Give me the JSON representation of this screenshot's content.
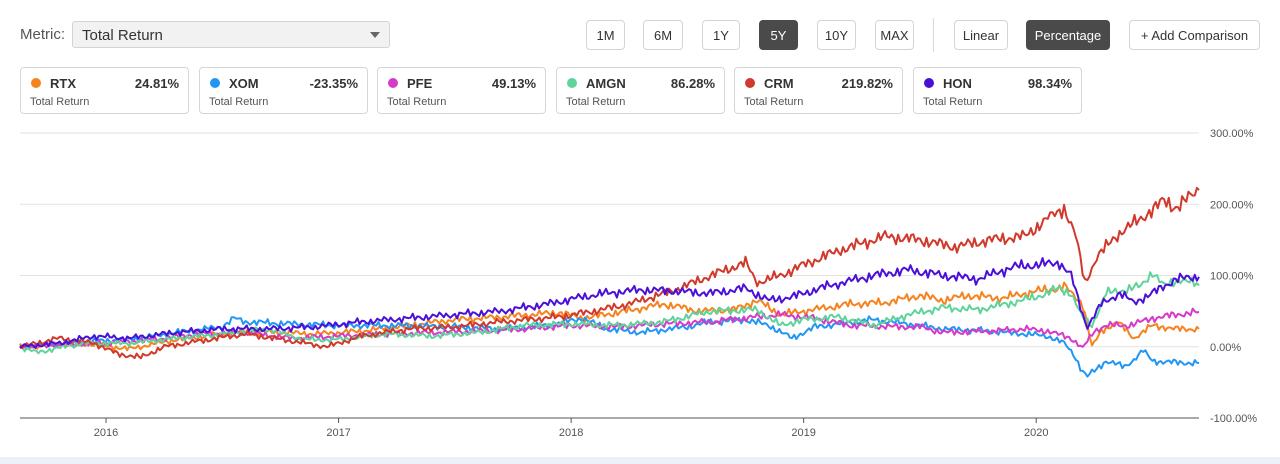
{
  "metric": {
    "label": "Metric:",
    "value": "Total Return"
  },
  "time_buttons": [
    {
      "label": "1M",
      "active": false
    },
    {
      "label": "6M",
      "active": false
    },
    {
      "label": "1Y",
      "active": false
    },
    {
      "label": "5Y",
      "active": true
    },
    {
      "label": "10Y",
      "active": false
    },
    {
      "label": "MAX",
      "active": false
    }
  ],
  "scale_buttons": [
    {
      "label": "Linear",
      "active": false
    },
    {
      "label": "Percentage",
      "active": true
    }
  ],
  "add_comparison": "+ Add Comparison",
  "cards": [
    {
      "ticker": "RTX",
      "value": "24.81%",
      "sub": "Total Return",
      "color": "#f5831f"
    },
    {
      "ticker": "XOM",
      "value": "-23.35%",
      "sub": "Total Return",
      "color": "#2196f3"
    },
    {
      "ticker": "PFE",
      "value": "49.13%",
      "sub": "Total Return",
      "color": "#d63ac8"
    },
    {
      "ticker": "AMGN",
      "value": "86.28%",
      "sub": "Total Return",
      "color": "#5fd39a"
    },
    {
      "ticker": "CRM",
      "value": "219.82%",
      "sub": "Total Return",
      "color": "#d0392b"
    },
    {
      "ticker": "HON",
      "value": "98.34%",
      "sub": "Total Return",
      "color": "#4a10d8"
    }
  ],
  "chart_data": {
    "type": "line",
    "x_start": 2015.63,
    "x_end": 2020.7,
    "y_ticks": [
      "300.00%",
      "200.00%",
      "100.00%",
      "0.00%",
      "-100.00%"
    ],
    "y_tick_values": [
      300,
      200,
      100,
      0,
      -100
    ],
    "ylim": [
      -100,
      300
    ],
    "x_tick_labels": [
      "2016",
      "2017",
      "2018",
      "2019",
      "2020"
    ],
    "x_tick_values": [
      2016,
      2017,
      2018,
      2019,
      2020
    ],
    "grid": true,
    "series": [
      {
        "name": "RTX",
        "color": "#f5831f",
        "points": [
          [
            2015.63,
            0
          ],
          [
            2015.9,
            5
          ],
          [
            2016.1,
            -3
          ],
          [
            2016.3,
            10
          ],
          [
            2016.6,
            22
          ],
          [
            2016.9,
            18
          ],
          [
            2017.1,
            22
          ],
          [
            2017.3,
            30
          ],
          [
            2017.5,
            38
          ],
          [
            2017.7,
            42
          ],
          [
            2017.95,
            48
          ],
          [
            2018.05,
            40
          ],
          [
            2018.2,
            48
          ],
          [
            2018.4,
            60
          ],
          [
            2018.55,
            50
          ],
          [
            2018.7,
            52
          ],
          [
            2018.8,
            65
          ],
          [
            2018.9,
            45
          ],
          [
            2019.0,
            50
          ],
          [
            2019.2,
            60
          ],
          [
            2019.35,
            62
          ],
          [
            2019.5,
            72
          ],
          [
            2019.6,
            65
          ],
          [
            2019.7,
            72
          ],
          [
            2019.85,
            68
          ],
          [
            2020.0,
            78
          ],
          [
            2020.1,
            82
          ],
          [
            2020.12,
            85
          ],
          [
            2020.2,
            60
          ],
          [
            2020.24,
            0
          ],
          [
            2020.28,
            22
          ],
          [
            2020.35,
            35
          ],
          [
            2020.42,
            12
          ],
          [
            2020.5,
            30
          ],
          [
            2020.6,
            25
          ],
          [
            2020.7,
            25
          ]
        ]
      },
      {
        "name": "XOM",
        "color": "#2196f3",
        "points": [
          [
            2015.63,
            0
          ],
          [
            2015.8,
            5
          ],
          [
            2015.95,
            8
          ],
          [
            2016.1,
            10
          ],
          [
            2016.3,
            20
          ],
          [
            2016.5,
            28
          ],
          [
            2016.55,
            40
          ],
          [
            2016.6,
            35
          ],
          [
            2016.8,
            32
          ],
          [
            2017.0,
            30
          ],
          [
            2017.2,
            30
          ],
          [
            2017.5,
            28
          ],
          [
            2017.7,
            25
          ],
          [
            2017.9,
            30
          ],
          [
            2018.05,
            40
          ],
          [
            2018.15,
            25
          ],
          [
            2018.3,
            20
          ],
          [
            2018.5,
            28
          ],
          [
            2018.6,
            35
          ],
          [
            2018.75,
            38
          ],
          [
            2018.85,
            30
          ],
          [
            2018.95,
            12
          ],
          [
            2019.05,
            28
          ],
          [
            2019.3,
            38
          ],
          [
            2019.45,
            32
          ],
          [
            2019.6,
            25
          ],
          [
            2019.8,
            22
          ],
          [
            2019.95,
            18
          ],
          [
            2020.05,
            15
          ],
          [
            2020.12,
            5
          ],
          [
            2020.16,
            -10
          ],
          [
            2020.2,
            -35
          ],
          [
            2020.22,
            -42
          ],
          [
            2020.3,
            -20
          ],
          [
            2020.38,
            -28
          ],
          [
            2020.42,
            -18
          ],
          [
            2020.46,
            -5
          ],
          [
            2020.5,
            -20
          ],
          [
            2020.6,
            -22
          ],
          [
            2020.7,
            -23
          ]
        ]
      },
      {
        "name": "PFE",
        "color": "#d63ac8",
        "points": [
          [
            2015.63,
            0
          ],
          [
            2015.8,
            3
          ],
          [
            2016.0,
            5
          ],
          [
            2016.2,
            10
          ],
          [
            2016.4,
            18
          ],
          [
            2016.6,
            20
          ],
          [
            2016.8,
            12
          ],
          [
            2017.0,
            15
          ],
          [
            2017.2,
            18
          ],
          [
            2017.4,
            20
          ],
          [
            2017.6,
            22
          ],
          [
            2017.8,
            25
          ],
          [
            2018.0,
            30
          ],
          [
            2018.2,
            28
          ],
          [
            2018.4,
            32
          ],
          [
            2018.6,
            35
          ],
          [
            2018.8,
            42
          ],
          [
            2018.9,
            45
          ],
          [
            2019.05,
            40
          ],
          [
            2019.2,
            30
          ],
          [
            2019.4,
            28
          ],
          [
            2019.5,
            28
          ],
          [
            2019.6,
            20
          ],
          [
            2019.8,
            22
          ],
          [
            2019.95,
            25
          ],
          [
            2020.05,
            22
          ],
          [
            2020.15,
            12
          ],
          [
            2020.2,
            -2
          ],
          [
            2020.25,
            22
          ],
          [
            2020.3,
            30
          ],
          [
            2020.4,
            30
          ],
          [
            2020.5,
            40
          ],
          [
            2020.6,
            45
          ],
          [
            2020.7,
            49
          ]
        ]
      },
      {
        "name": "AMGN",
        "color": "#5fd39a",
        "points": [
          [
            2015.63,
            0
          ],
          [
            2015.7,
            -8
          ],
          [
            2015.9,
            5
          ],
          [
            2016.1,
            5
          ],
          [
            2016.3,
            12
          ],
          [
            2016.5,
            18
          ],
          [
            2016.7,
            25
          ],
          [
            2016.85,
            10
          ],
          [
            2017.0,
            10
          ],
          [
            2017.2,
            18
          ],
          [
            2017.4,
            15
          ],
          [
            2017.6,
            20
          ],
          [
            2017.8,
            30
          ],
          [
            2018.0,
            32
          ],
          [
            2018.2,
            30
          ],
          [
            2018.4,
            35
          ],
          [
            2018.6,
            50
          ],
          [
            2018.8,
            52
          ],
          [
            2018.9,
            30
          ],
          [
            2019.0,
            38
          ],
          [
            2019.15,
            42
          ],
          [
            2019.3,
            30
          ],
          [
            2019.45,
            45
          ],
          [
            2019.6,
            55
          ],
          [
            2019.75,
            52
          ],
          [
            2019.9,
            62
          ],
          [
            2020.0,
            70
          ],
          [
            2020.1,
            82
          ],
          [
            2020.15,
            75
          ],
          [
            2020.2,
            40
          ],
          [
            2020.24,
            30
          ],
          [
            2020.3,
            75
          ],
          [
            2020.38,
            80
          ],
          [
            2020.45,
            85
          ],
          [
            2020.5,
            105
          ],
          [
            2020.55,
            85
          ],
          [
            2020.62,
            95
          ],
          [
            2020.7,
            86
          ]
        ]
      },
      {
        "name": "CRM",
        "color": "#d0392b",
        "points": [
          [
            2015.63,
            0
          ],
          [
            2015.8,
            12
          ],
          [
            2015.95,
            5
          ],
          [
            2016.05,
            -10
          ],
          [
            2016.15,
            -15
          ],
          [
            2016.25,
            0
          ],
          [
            2016.4,
            8
          ],
          [
            2016.6,
            18
          ],
          [
            2016.8,
            8
          ],
          [
            2016.95,
            0
          ],
          [
            2017.1,
            15
          ],
          [
            2017.3,
            25
          ],
          [
            2017.5,
            28
          ],
          [
            2017.7,
            35
          ],
          [
            2017.95,
            42
          ],
          [
            2018.1,
            50
          ],
          [
            2018.25,
            60
          ],
          [
            2018.45,
            80
          ],
          [
            2018.6,
            100
          ],
          [
            2018.75,
            118
          ],
          [
            2018.8,
            90
          ],
          [
            2018.9,
            100
          ],
          [
            2019.0,
            115
          ],
          [
            2019.15,
            135
          ],
          [
            2019.35,
            155
          ],
          [
            2019.5,
            150
          ],
          [
            2019.65,
            140
          ],
          [
            2019.8,
            150
          ],
          [
            2019.95,
            155
          ],
          [
            2020.05,
            180
          ],
          [
            2020.12,
            195
          ],
          [
            2020.17,
            155
          ],
          [
            2020.21,
            90
          ],
          [
            2020.26,
            125
          ],
          [
            2020.34,
            155
          ],
          [
            2020.45,
            180
          ],
          [
            2020.55,
            205
          ],
          [
            2020.6,
            195
          ],
          [
            2020.7,
            220
          ]
        ]
      },
      {
        "name": "HON",
        "color": "#4a10d8",
        "points": [
          [
            2015.63,
            0
          ],
          [
            2015.8,
            5
          ],
          [
            2015.95,
            15
          ],
          [
            2016.1,
            12
          ],
          [
            2016.3,
            20
          ],
          [
            2016.5,
            25
          ],
          [
            2016.7,
            25
          ],
          [
            2016.9,
            28
          ],
          [
            2017.1,
            35
          ],
          [
            2017.3,
            40
          ],
          [
            2017.5,
            45
          ],
          [
            2017.7,
            50
          ],
          [
            2017.9,
            60
          ],
          [
            2018.05,
            70
          ],
          [
            2018.15,
            75
          ],
          [
            2018.3,
            80
          ],
          [
            2018.45,
            78
          ],
          [
            2018.6,
            75
          ],
          [
            2018.75,
            82
          ],
          [
            2018.85,
            65
          ],
          [
            2018.95,
            70
          ],
          [
            2019.1,
            85
          ],
          [
            2019.3,
            100
          ],
          [
            2019.45,
            108
          ],
          [
            2019.6,
            100
          ],
          [
            2019.75,
            95
          ],
          [
            2019.9,
            112
          ],
          [
            2020.0,
            115
          ],
          [
            2020.1,
            118
          ],
          [
            2020.15,
            100
          ],
          [
            2020.2,
            45
          ],
          [
            2020.22,
            28
          ],
          [
            2020.28,
            60
          ],
          [
            2020.36,
            75
          ],
          [
            2020.42,
            62
          ],
          [
            2020.5,
            75
          ],
          [
            2020.6,
            95
          ],
          [
            2020.7,
            98
          ]
        ]
      }
    ]
  }
}
